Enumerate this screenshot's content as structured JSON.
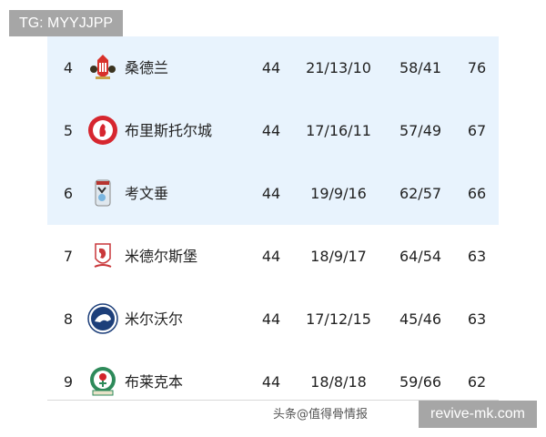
{
  "watermarks": {
    "top": "TG: MYYJJPP",
    "bottom": "revive-mk.com",
    "overlay": "头条@值得骨情报"
  },
  "colors": {
    "highlight_rows": "#e8f3fd",
    "text": "#222222"
  },
  "standings": [
    {
      "rank": "4",
      "team": "桑德兰",
      "logo": "sunderland-crest-icon",
      "played": "44",
      "wdl": "21/13/10",
      "gfga": "58/41",
      "pts": "76",
      "highlight": true
    },
    {
      "rank": "5",
      "team": "布里斯托尔城",
      "logo": "bristol-city-crest-icon",
      "played": "44",
      "wdl": "17/16/11",
      "gfga": "57/49",
      "pts": "67",
      "highlight": true
    },
    {
      "rank": "6",
      "team": "考文垂",
      "logo": "coventry-crest-icon",
      "played": "44",
      "wdl": "19/9/16",
      "gfga": "62/57",
      "pts": "66",
      "highlight": true
    },
    {
      "rank": "7",
      "team": "米德尔斯堡",
      "logo": "middlesbrough-crest-icon",
      "played": "44",
      "wdl": "18/9/17",
      "gfga": "64/54",
      "pts": "63",
      "highlight": false
    },
    {
      "rank": "8",
      "team": "米尔沃尔",
      "logo": "millwall-crest-icon",
      "played": "44",
      "wdl": "17/12/15",
      "gfga": "45/46",
      "pts": "63",
      "highlight": false
    },
    {
      "rank": "9",
      "team": "布莱克本",
      "logo": "blackburn-crest-icon",
      "played": "44",
      "wdl": "18/8/18",
      "gfga": "59/66",
      "pts": "62",
      "highlight": false
    }
  ]
}
